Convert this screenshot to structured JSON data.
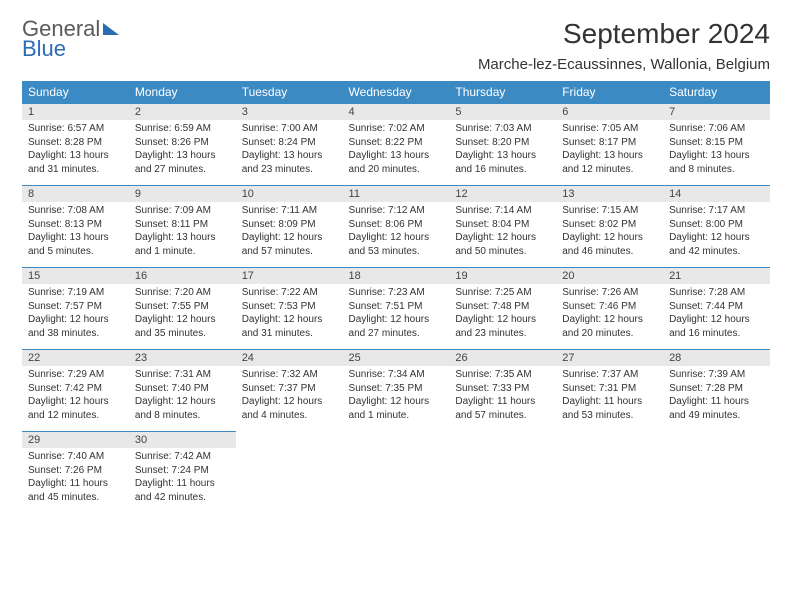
{
  "brand": {
    "line1": "General",
    "line2": "Blue"
  },
  "title": "September 2024",
  "location": "Marche-lez-Ecaussinnes, Wallonia, Belgium",
  "colors": {
    "header_bg": "#3b8ac4",
    "header_fg": "#ffffff",
    "daynum_bg": "#e8e8e8",
    "row_border": "#3b8ac4",
    "brand_gray": "#5a5a5a",
    "brand_blue": "#2a6db5"
  },
  "day_headers": [
    "Sunday",
    "Monday",
    "Tuesday",
    "Wednesday",
    "Thursday",
    "Friday",
    "Saturday"
  ],
  "weeks": [
    [
      {
        "n": "1",
        "sr": "Sunrise: 6:57 AM",
        "ss": "Sunset: 8:28 PM",
        "dl1": "Daylight: 13 hours",
        "dl2": "and 31 minutes."
      },
      {
        "n": "2",
        "sr": "Sunrise: 6:59 AM",
        "ss": "Sunset: 8:26 PM",
        "dl1": "Daylight: 13 hours",
        "dl2": "and 27 minutes."
      },
      {
        "n": "3",
        "sr": "Sunrise: 7:00 AM",
        "ss": "Sunset: 8:24 PM",
        "dl1": "Daylight: 13 hours",
        "dl2": "and 23 minutes."
      },
      {
        "n": "4",
        "sr": "Sunrise: 7:02 AM",
        "ss": "Sunset: 8:22 PM",
        "dl1": "Daylight: 13 hours",
        "dl2": "and 20 minutes."
      },
      {
        "n": "5",
        "sr": "Sunrise: 7:03 AM",
        "ss": "Sunset: 8:20 PM",
        "dl1": "Daylight: 13 hours",
        "dl2": "and 16 minutes."
      },
      {
        "n": "6",
        "sr": "Sunrise: 7:05 AM",
        "ss": "Sunset: 8:17 PM",
        "dl1": "Daylight: 13 hours",
        "dl2": "and 12 minutes."
      },
      {
        "n": "7",
        "sr": "Sunrise: 7:06 AM",
        "ss": "Sunset: 8:15 PM",
        "dl1": "Daylight: 13 hours",
        "dl2": "and 8 minutes."
      }
    ],
    [
      {
        "n": "8",
        "sr": "Sunrise: 7:08 AM",
        "ss": "Sunset: 8:13 PM",
        "dl1": "Daylight: 13 hours",
        "dl2": "and 5 minutes."
      },
      {
        "n": "9",
        "sr": "Sunrise: 7:09 AM",
        "ss": "Sunset: 8:11 PM",
        "dl1": "Daylight: 13 hours",
        "dl2": "and 1 minute."
      },
      {
        "n": "10",
        "sr": "Sunrise: 7:11 AM",
        "ss": "Sunset: 8:09 PM",
        "dl1": "Daylight: 12 hours",
        "dl2": "and 57 minutes."
      },
      {
        "n": "11",
        "sr": "Sunrise: 7:12 AM",
        "ss": "Sunset: 8:06 PM",
        "dl1": "Daylight: 12 hours",
        "dl2": "and 53 minutes."
      },
      {
        "n": "12",
        "sr": "Sunrise: 7:14 AM",
        "ss": "Sunset: 8:04 PM",
        "dl1": "Daylight: 12 hours",
        "dl2": "and 50 minutes."
      },
      {
        "n": "13",
        "sr": "Sunrise: 7:15 AM",
        "ss": "Sunset: 8:02 PM",
        "dl1": "Daylight: 12 hours",
        "dl2": "and 46 minutes."
      },
      {
        "n": "14",
        "sr": "Sunrise: 7:17 AM",
        "ss": "Sunset: 8:00 PM",
        "dl1": "Daylight: 12 hours",
        "dl2": "and 42 minutes."
      }
    ],
    [
      {
        "n": "15",
        "sr": "Sunrise: 7:19 AM",
        "ss": "Sunset: 7:57 PM",
        "dl1": "Daylight: 12 hours",
        "dl2": "and 38 minutes."
      },
      {
        "n": "16",
        "sr": "Sunrise: 7:20 AM",
        "ss": "Sunset: 7:55 PM",
        "dl1": "Daylight: 12 hours",
        "dl2": "and 35 minutes."
      },
      {
        "n": "17",
        "sr": "Sunrise: 7:22 AM",
        "ss": "Sunset: 7:53 PM",
        "dl1": "Daylight: 12 hours",
        "dl2": "and 31 minutes."
      },
      {
        "n": "18",
        "sr": "Sunrise: 7:23 AM",
        "ss": "Sunset: 7:51 PM",
        "dl1": "Daylight: 12 hours",
        "dl2": "and 27 minutes."
      },
      {
        "n": "19",
        "sr": "Sunrise: 7:25 AM",
        "ss": "Sunset: 7:48 PM",
        "dl1": "Daylight: 12 hours",
        "dl2": "and 23 minutes."
      },
      {
        "n": "20",
        "sr": "Sunrise: 7:26 AM",
        "ss": "Sunset: 7:46 PM",
        "dl1": "Daylight: 12 hours",
        "dl2": "and 20 minutes."
      },
      {
        "n": "21",
        "sr": "Sunrise: 7:28 AM",
        "ss": "Sunset: 7:44 PM",
        "dl1": "Daylight: 12 hours",
        "dl2": "and 16 minutes."
      }
    ],
    [
      {
        "n": "22",
        "sr": "Sunrise: 7:29 AM",
        "ss": "Sunset: 7:42 PM",
        "dl1": "Daylight: 12 hours",
        "dl2": "and 12 minutes."
      },
      {
        "n": "23",
        "sr": "Sunrise: 7:31 AM",
        "ss": "Sunset: 7:40 PM",
        "dl1": "Daylight: 12 hours",
        "dl2": "and 8 minutes."
      },
      {
        "n": "24",
        "sr": "Sunrise: 7:32 AM",
        "ss": "Sunset: 7:37 PM",
        "dl1": "Daylight: 12 hours",
        "dl2": "and 4 minutes."
      },
      {
        "n": "25",
        "sr": "Sunrise: 7:34 AM",
        "ss": "Sunset: 7:35 PM",
        "dl1": "Daylight: 12 hours",
        "dl2": "and 1 minute."
      },
      {
        "n": "26",
        "sr": "Sunrise: 7:35 AM",
        "ss": "Sunset: 7:33 PM",
        "dl1": "Daylight: 11 hours",
        "dl2": "and 57 minutes."
      },
      {
        "n": "27",
        "sr": "Sunrise: 7:37 AM",
        "ss": "Sunset: 7:31 PM",
        "dl1": "Daylight: 11 hours",
        "dl2": "and 53 minutes."
      },
      {
        "n": "28",
        "sr": "Sunrise: 7:39 AM",
        "ss": "Sunset: 7:28 PM",
        "dl1": "Daylight: 11 hours",
        "dl2": "and 49 minutes."
      }
    ],
    [
      {
        "n": "29",
        "sr": "Sunrise: 7:40 AM",
        "ss": "Sunset: 7:26 PM",
        "dl1": "Daylight: 11 hours",
        "dl2": "and 45 minutes."
      },
      {
        "n": "30",
        "sr": "Sunrise: 7:42 AM",
        "ss": "Sunset: 7:24 PM",
        "dl1": "Daylight: 11 hours",
        "dl2": "and 42 minutes."
      },
      null,
      null,
      null,
      null,
      null
    ]
  ]
}
